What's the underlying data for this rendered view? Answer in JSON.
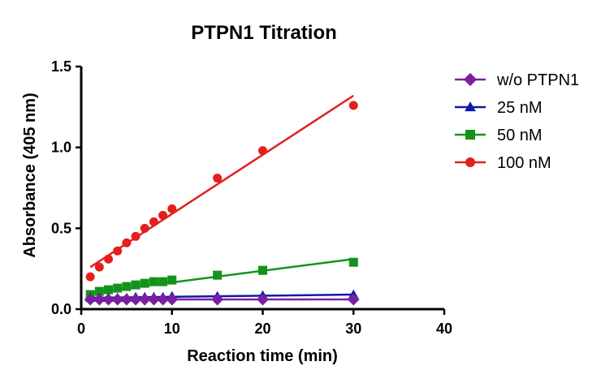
{
  "chart_data": {
    "type": "scatter",
    "title": "PTPN1 Titration",
    "xlabel": "Reaction time (min)",
    "ylabel": "Absorbance (405 nm)",
    "xlim": [
      0,
      40
    ],
    "ylim": [
      0.0,
      1.5
    ],
    "xticks": [
      0,
      10,
      20,
      30,
      40
    ],
    "xtick_labels": [
      "0",
      "10",
      "20",
      "30",
      "40"
    ],
    "yticks": [
      0.0,
      0.5,
      1.0,
      1.5
    ],
    "ytick_labels": [
      "0.0",
      "0.5",
      "1.0",
      "1.5"
    ],
    "grid": false,
    "legend_position": "right",
    "series": [
      {
        "name": "w/o PTPN1",
        "color": "#7B1FA2",
        "marker": "diamond",
        "x": [
          1,
          2,
          3,
          4,
          5,
          6,
          7,
          8,
          9,
          10,
          15,
          20,
          30
        ],
        "y": [
          0.06,
          0.06,
          0.06,
          0.06,
          0.06,
          0.06,
          0.06,
          0.06,
          0.06,
          0.06,
          0.06,
          0.06,
          0.06
        ],
        "fit": [
          [
            1,
            0.06
          ],
          [
            30,
            0.06
          ]
        ]
      },
      {
        "name": "25 nM",
        "color": "#0D1BA8",
        "marker": "triangle",
        "x": [
          1,
          2,
          3,
          4,
          5,
          6,
          7,
          8,
          9,
          10,
          15,
          20,
          30
        ],
        "y": [
          0.07,
          0.07,
          0.07,
          0.07,
          0.07,
          0.075,
          0.075,
          0.075,
          0.075,
          0.08,
          0.08,
          0.085,
          0.09
        ],
        "fit": [
          [
            1,
            0.07
          ],
          [
            30,
            0.09
          ]
        ]
      },
      {
        "name": "50 nM",
        "color": "#14931A",
        "marker": "square",
        "x": [
          1,
          2,
          3,
          4,
          5,
          6,
          7,
          8,
          9,
          10,
          15,
          20,
          30
        ],
        "y": [
          0.09,
          0.11,
          0.12,
          0.13,
          0.14,
          0.15,
          0.16,
          0.17,
          0.17,
          0.18,
          0.21,
          0.24,
          0.29
        ],
        "fit": [
          [
            1,
            0.1
          ],
          [
            30,
            0.31
          ]
        ]
      },
      {
        "name": "100 nM",
        "color": "#E3201B",
        "marker": "circle",
        "x": [
          1,
          2,
          3,
          4,
          5,
          6,
          7,
          8,
          9,
          10,
          15,
          20,
          30
        ],
        "y": [
          0.2,
          0.26,
          0.31,
          0.36,
          0.41,
          0.45,
          0.5,
          0.54,
          0.58,
          0.62,
          0.81,
          0.98,
          1.26
        ],
        "fit": [
          [
            1,
            0.26
          ],
          [
            30,
            1.32
          ]
        ]
      }
    ]
  }
}
